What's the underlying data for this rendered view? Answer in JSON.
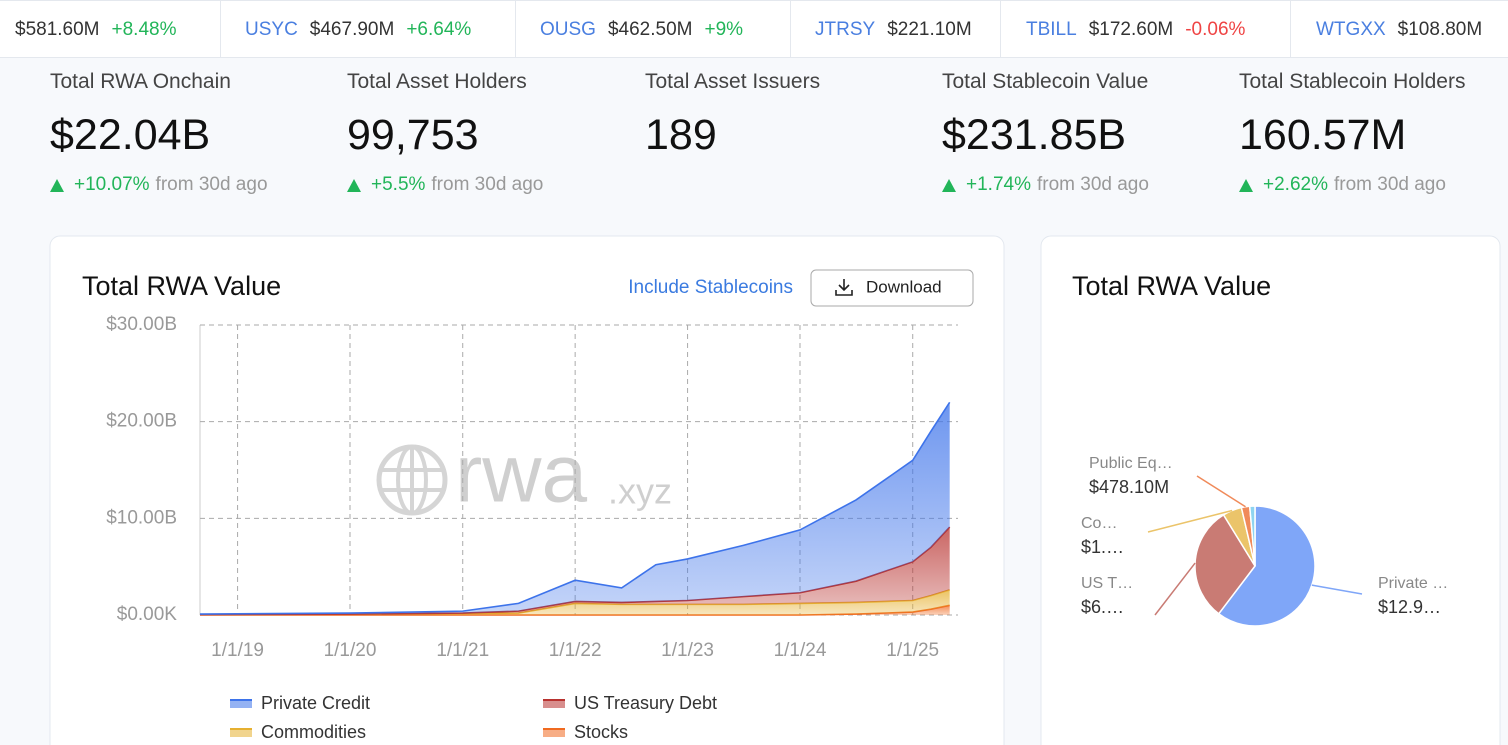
{
  "ticker": [
    {
      "value": "$581.60M",
      "change": "+8.48%",
      "direction": "up"
    },
    {
      "name": "USYC",
      "value": "$467.90M",
      "change": "+6.64%",
      "direction": "up"
    },
    {
      "name": "OUSG",
      "value": "$462.50M",
      "change": "+9%",
      "direction": "up"
    },
    {
      "name": "JTRSY",
      "value": "$221.10M"
    },
    {
      "name": "TBILL",
      "value": "$172.60M",
      "change": "-0.06%",
      "direction": "down"
    },
    {
      "name": "WTGXX",
      "value": "$108.80M"
    }
  ],
  "stats": [
    {
      "label": "Total RWA Onchain",
      "value": "$22.04B",
      "change": "+10.07%",
      "note": "from 30d ago"
    },
    {
      "label": "Total Asset Holders",
      "value": "99,753",
      "change": "+5.5%",
      "note": "from 30d ago"
    },
    {
      "label": "Total Asset Issuers",
      "value": "189"
    },
    {
      "label": "Total Stablecoin Value",
      "value": "$231.85B",
      "change": "+1.74%",
      "note": "from 30d ago"
    },
    {
      "label": "Total Stablecoin Holders",
      "value": "160.57M",
      "change": "+2.62%",
      "note": "from 30d ago"
    }
  ],
  "chart_controls": {
    "toggle": "Include Stablecoins",
    "download": "Download"
  },
  "watermark": {
    "main": "rwa",
    "suffix": ".xyz"
  },
  "chart_data": [
    {
      "type": "area",
      "stacked": true,
      "title": "Total RWA Value",
      "x": [
        "2018-09-01",
        "2020-01-01",
        "2021-01-01",
        "2021-07-01",
        "2022-01-01",
        "2022-06-01",
        "2022-09-20",
        "2023-01-01",
        "2023-07-01",
        "2024-01-01",
        "2024-07-01",
        "2025-01-01",
        "2025-03-01",
        "2025-05-01"
      ],
      "series": [
        {
          "name": "Private Credit",
          "color": "#3d73ea",
          "values": [
            0.05,
            0.1,
            0.2,
            0.8,
            2.2,
            1.5,
            3.8,
            4.3,
            5.3,
            6.5,
            8.4,
            10.5,
            12,
            12.9
          ]
        },
        {
          "name": "US Treasury Debt",
          "color": "#b8322f",
          "values": [
            0,
            0,
            0.05,
            0.2,
            0.2,
            0.2,
            0.3,
            0.4,
            0.8,
            1.1,
            2.2,
            4.0,
            5.0,
            6.5
          ]
        },
        {
          "name": "Commodities",
          "color": "#e6b030",
          "values": [
            0.05,
            0.1,
            0.15,
            0.2,
            1.2,
            1.1,
            1.1,
            1.1,
            1.1,
            1.2,
            1.2,
            1.2,
            1.4,
            1.6
          ]
        },
        {
          "name": "Stocks",
          "color": "#f06a20",
          "values": [
            0,
            0,
            0,
            0,
            0,
            0,
            0,
            0,
            0,
            0,
            0.1,
            0.3,
            0.6,
            1.0
          ]
        }
      ],
      "xlim": [
        "2018-09-01",
        "2025-05-28"
      ],
      "xticks": [
        {
          "value": "2019-01-01",
          "label": "1/1/19"
        },
        {
          "value": "2020-01-01",
          "label": "1/1/20"
        },
        {
          "value": "2021-01-01",
          "label": "1/1/21"
        },
        {
          "value": "2022-01-01",
          "label": "1/1/22"
        },
        {
          "value": "2023-01-01",
          "label": "1/1/23"
        },
        {
          "value": "2024-01-01",
          "label": "1/1/24"
        },
        {
          "value": "2025-01-01",
          "label": "1/1/25"
        }
      ],
      "ylim": [
        0,
        30
      ],
      "yticks": [
        {
          "value": 0,
          "label": "$0.00K"
        },
        {
          "value": 10,
          "label": "$10.00B"
        },
        {
          "value": 20,
          "label": "$20.00B"
        },
        {
          "value": 30,
          "label": "$30.00B"
        }
      ],
      "grid": true,
      "legend": "bottom"
    },
    {
      "type": "pie",
      "title": "Total RWA Value",
      "categories": [
        "Private …",
        "US T…",
        "Co…",
        "Public Eq…",
        null
      ],
      "values": [
        12.9,
        6.6,
        1.1,
        0.4781,
        0.3
      ],
      "value_labels": [
        "$12.9…",
        "$6.…",
        "$1.…",
        "$478.10M",
        null
      ],
      "colors": [
        "#7fa6f8",
        "#c97b74",
        "#ebc46a",
        "#f08a5a",
        "#8ed4f0"
      ]
    }
  ]
}
